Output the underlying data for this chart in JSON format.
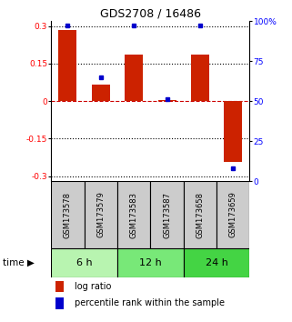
{
  "title": "GDS2708 / 16486",
  "samples": [
    "GSM173578",
    "GSM173579",
    "GSM173583",
    "GSM173587",
    "GSM173658",
    "GSM173659"
  ],
  "log_ratios": [
    0.285,
    0.065,
    0.185,
    0.005,
    0.185,
    -0.245
  ],
  "percentile_ranks": [
    97,
    65,
    97,
    51,
    97,
    8
  ],
  "time_groups": [
    {
      "label": "6 h",
      "start": 0,
      "end": 1,
      "color": "#b8f4b0"
    },
    {
      "label": "12 h",
      "start": 2,
      "end": 3,
      "color": "#78e878"
    },
    {
      "label": "24 h",
      "start": 4,
      "end": 5,
      "color": "#44d444"
    }
  ],
  "ylim": [
    -0.32,
    0.32
  ],
  "yticks_left": [
    -0.3,
    -0.15,
    0,
    0.15,
    0.3
  ],
  "yticks_right": [
    0,
    25,
    50,
    75,
    100
  ],
  "bar_color": "#cc2200",
  "dot_color": "#0000cc",
  "zero_line_color": "#cc0000",
  "grid_color": "#000000",
  "background_color": "#ffffff",
  "sample_box_color": "#cccccc"
}
